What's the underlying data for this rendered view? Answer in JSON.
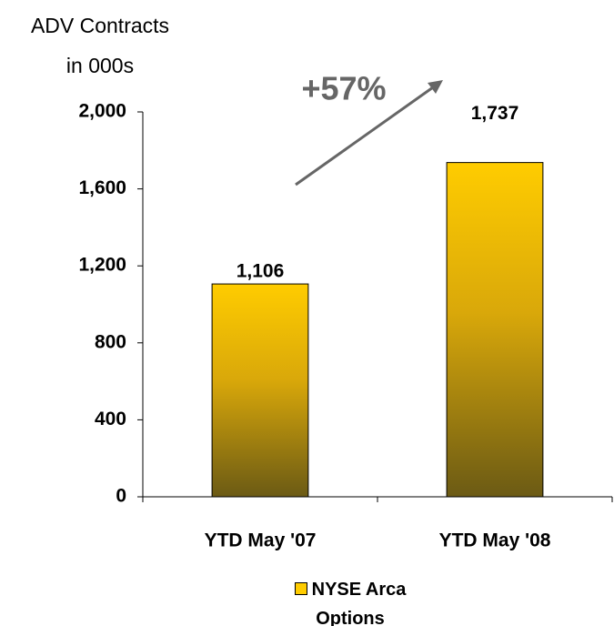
{
  "chart_data": {
    "type": "bar",
    "y_label": [
      "ADV Contracts",
      "in 000s"
    ],
    "annotation": "+57%",
    "categories": [
      "YTD May '07",
      "YTD May '08"
    ],
    "series": [
      {
        "name": "NYSE Arca Options",
        "color": "#ffcc00",
        "values": [
          1106,
          1737
        ],
        "value_labels": [
          "1,106",
          "1,737"
        ]
      }
    ],
    "ylim": [
      0,
      2000
    ],
    "yticks": [
      0,
      400,
      800,
      {
        "value": 1200,
        "label": "1,200"
      },
      {
        "value": 1600,
        "label": "1,600"
      },
      {
        "value": 2000,
        "label": "2,000"
      }
    ],
    "grid": false,
    "legend": "bottom"
  }
}
